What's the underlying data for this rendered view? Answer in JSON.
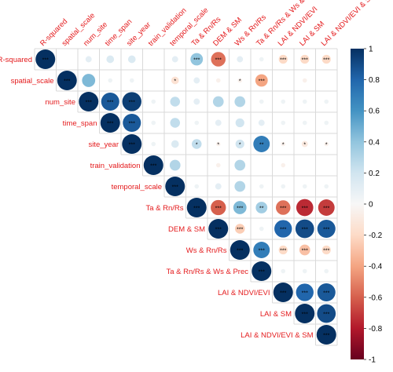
{
  "chart_data": {
    "type": "heatmap",
    "variables": [
      "R-squared",
      "spatial_scale",
      "num_site",
      "time_span",
      "site_year",
      "train_validation",
      "temporal_scale",
      "Ta & Rn/Rs",
      "DEM & SM",
      "Ws & Rn/Rs",
      "Ta & Rn/Rs & Ws & Prec",
      "LAI & NDVI/EVI",
      "LAI & SM",
      "LAI & NDVI/EVI & SM"
    ],
    "matrix": [
      [
        1.0,
        0.0,
        0.1,
        0.15,
        0.15,
        0.0,
        0.1,
        0.4,
        -0.55,
        0.1,
        0.05,
        -0.2,
        -0.2,
        -0.2
      ],
      [
        null,
        1.0,
        0.45,
        0.05,
        0.05,
        0.0,
        -0.15,
        0.1,
        -0.05,
        -0.05,
        -0.4,
        0.0,
        -0.05,
        0.0
      ],
      [
        null,
        null,
        1.0,
        0.85,
        0.95,
        0.05,
        0.25,
        0.1,
        0.3,
        0.3,
        0.05,
        0.05,
        0.05,
        0.05
      ],
      [
        null,
        null,
        null,
        1.0,
        0.85,
        0.05,
        0.25,
        0.05,
        0.1,
        0.2,
        0.1,
        0.05,
        0.05,
        0.05
      ],
      [
        null,
        null,
        null,
        null,
        1.0,
        0.05,
        0.15,
        0.25,
        -0.05,
        0.2,
        0.7,
        -0.05,
        -0.1,
        -0.05
      ],
      [
        null,
        null,
        null,
        null,
        null,
        1.0,
        0.3,
        0.0,
        -0.05,
        0.3,
        0.0,
        -0.05,
        0.0,
        0.0
      ],
      [
        null,
        null,
        null,
        null,
        null,
        null,
        1.0,
        0.05,
        0.1,
        0.3,
        0.05,
        0.05,
        0.05,
        0.05
      ],
      [
        null,
        null,
        null,
        null,
        null,
        null,
        null,
        1.0,
        -0.6,
        0.45,
        0.35,
        -0.55,
        -0.75,
        -0.7
      ],
      [
        null,
        null,
        null,
        null,
        null,
        null,
        null,
        null,
        1.0,
        -0.25,
        0.05,
        0.8,
        0.9,
        0.85
      ],
      [
        null,
        null,
        null,
        null,
        null,
        null,
        null,
        null,
        null,
        1.0,
        0.7,
        -0.2,
        -0.3,
        -0.2
      ],
      [
        null,
        null,
        null,
        null,
        null,
        null,
        null,
        null,
        null,
        null,
        1.0,
        0.05,
        0.05,
        0.05
      ],
      [
        null,
        null,
        null,
        null,
        null,
        null,
        null,
        null,
        null,
        null,
        null,
        1.0,
        0.8,
        0.85
      ],
      [
        null,
        null,
        null,
        null,
        null,
        null,
        null,
        null,
        null,
        null,
        null,
        null,
        1.0,
        0.9
      ],
      [
        null,
        null,
        null,
        null,
        null,
        null,
        null,
        null,
        null,
        null,
        null,
        null,
        null,
        1.0
      ]
    ],
    "significance": [
      [
        "***",
        "",
        "",
        "",
        "",
        "",
        "",
        "***",
        "***",
        "",
        "",
        "***",
        "***",
        "***"
      ],
      [
        "",
        "***",
        "",
        "",
        "",
        "",
        "*",
        "",
        "",
        "*",
        "***",
        "",
        "",
        ""
      ],
      [
        "",
        "",
        "***",
        "***",
        "***",
        "",
        "",
        "",
        "",
        "",
        "",
        "",
        "",
        ""
      ],
      [
        "",
        "",
        "",
        "***",
        "***",
        "",
        "",
        "",
        "",
        "",
        "",
        "",
        "",
        ""
      ],
      [
        "",
        "",
        "",
        "",
        "***",
        "",
        "",
        "*",
        "*",
        "*",
        "**",
        "*",
        "*",
        "*"
      ],
      [
        "",
        "",
        "",
        "",
        "",
        "***",
        "",
        "",
        "",
        "",
        "",
        "",
        "",
        ""
      ],
      [
        "",
        "",
        "",
        "",
        "",
        "",
        "***",
        "",
        "",
        "",
        "",
        "",
        "",
        ""
      ],
      [
        "",
        "",
        "",
        "",
        "",
        "",
        "",
        "***",
        "***",
        "***",
        "**",
        "***",
        "***",
        "***"
      ],
      [
        "",
        "",
        "",
        "",
        "",
        "",
        "",
        "",
        "***",
        "***",
        "",
        "***",
        "***",
        "***"
      ],
      [
        "",
        "",
        "",
        "",
        "",
        "",
        "",
        "",
        "",
        "***",
        "***",
        "***",
        "***",
        "***"
      ],
      [
        "",
        "",
        "",
        "",
        "",
        "",
        "",
        "",
        "",
        "",
        "***",
        "",
        "",
        ""
      ],
      [
        "",
        "",
        "",
        "",
        "",
        "",
        "",
        "",
        "",
        "",
        "",
        "***",
        "***",
        "***"
      ],
      [
        "",
        "",
        "",
        "",
        "",
        "",
        "",
        "",
        "",
        "",
        "",
        "",
        "***",
        "***"
      ],
      [
        "",
        "",
        "",
        "",
        "",
        "",
        "",
        "",
        "",
        "",
        "",
        "",
        "",
        "***"
      ]
    ],
    "colorbar": {
      "ticks": [
        "1",
        "0.8",
        "0.6",
        "0.4",
        "0.2",
        "0",
        "-0.2",
        "-0.4",
        "-0.6",
        "-0.8",
        "-1"
      ],
      "range": [
        -1,
        1
      ]
    },
    "colors": {
      "negative": "#67001f",
      "zero": "#f7f7f7",
      "positive": "#053061",
      "label": "#e41a1c"
    }
  }
}
